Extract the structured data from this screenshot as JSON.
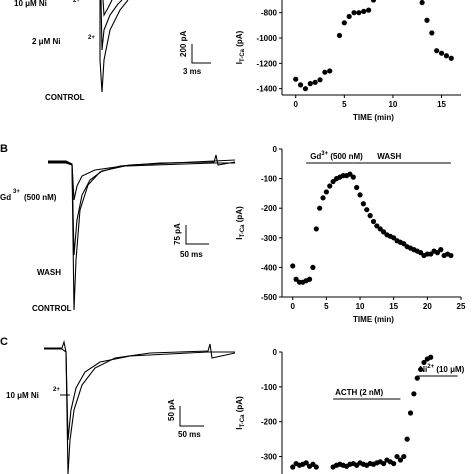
{
  "figure": {
    "panel_labels": [
      "B",
      "C"
    ],
    "traces": {
      "A": {
        "labels": [
          "10 μM  Ni",
          "2 μM  Ni",
          "CONTROL"
        ],
        "label_superscripts": [
          "2+",
          "2+"
        ],
        "scale_bar": {
          "vertical": "200 pA",
          "horizontal": "3 ms"
        }
      },
      "B": {
        "labels": [
          "Gd",
          " (500 nM)",
          "WASH",
          "CONTROL"
        ],
        "label_superscripts": [
          "3+"
        ],
        "scale_bar": {
          "vertical": "75 pA",
          "horizontal": "50 ms"
        }
      },
      "C": {
        "labels": [
          "10 μM  Ni"
        ],
        "label_superscripts": [
          "2+"
        ],
        "scale_bar": {
          "vertical": "50 pA",
          "horizontal": "50 ms"
        }
      }
    }
  },
  "chart_data": [
    {
      "type": "scatter",
      "panel": "A",
      "ylabel": "I",
      "ylabel_sub": "T-Ca",
      "ylabel_unit": " (pA)",
      "xlabel": "TIME (min)",
      "xlim": [
        -1,
        17
      ],
      "ylim": [
        -1450,
        -700
      ],
      "xticks": [
        0,
        5,
        10,
        15
      ],
      "yticks": [
        -800,
        -1000,
        -1200,
        -1400
      ],
      "x": [
        0,
        0.5,
        1,
        1.5,
        2,
        2.5,
        3,
        3.5,
        4.5,
        5,
        5.5,
        6,
        6.5,
        7,
        7.5,
        8,
        13,
        13.5,
        14,
        14.5,
        15,
        15.5,
        16
      ],
      "y": [
        -1325,
        -1370,
        -1400,
        -1360,
        -1350,
        -1330,
        -1270,
        -1260,
        -980,
        -880,
        -830,
        -800,
        -800,
        -790,
        -780,
        -700,
        -720,
        -860,
        -960,
        -1100,
        -1120,
        -1140,
        -1160
      ]
    },
    {
      "type": "scatter",
      "panel": "B",
      "ylabel": "I",
      "ylabel_sub": "T-Ca",
      "ylabel_unit": " (pA)",
      "xlabel": "TIME (min)",
      "xlim": [
        -1,
        25
      ],
      "ylim": [
        -500,
        0
      ],
      "xticks": [
        0,
        5,
        10,
        15,
        20,
        25
      ],
      "yticks": [
        0,
        -100,
        -200,
        -300,
        -400,
        -500
      ],
      "annotations": [
        {
          "text": "Gd",
          "sup": "3+",
          "rest": " (500 nM)",
          "bar_x": [
            2,
            9
          ]
        },
        {
          "text": "WASH",
          "bar_x": [
            9,
            23.5
          ]
        }
      ],
      "x": [
        0,
        0.5,
        1,
        1.5,
        2,
        2.5,
        3,
        3.5,
        4,
        4.5,
        5,
        5.5,
        6,
        6.5,
        7,
        7.5,
        8,
        8.5,
        9,
        9.5,
        10,
        10.5,
        11,
        11.5,
        12,
        12.5,
        13,
        13.5,
        14,
        14.5,
        15,
        15.5,
        16,
        16.5,
        17,
        17.5,
        18,
        18.5,
        19,
        19.5,
        20,
        20.5,
        21,
        21.5,
        22,
        22.5,
        23,
        23.5
      ],
      "y": [
        -395,
        -440,
        -450,
        -450,
        -445,
        -440,
        -400,
        -270,
        -200,
        -165,
        -145,
        -125,
        -110,
        -100,
        -95,
        -90,
        -90,
        -85,
        -95,
        -130,
        -155,
        -185,
        -205,
        -225,
        -245,
        -260,
        -270,
        -280,
        -290,
        -295,
        -300,
        -310,
        -315,
        -320,
        -330,
        -335,
        -340,
        -345,
        -350,
        -360,
        -355,
        -355,
        -345,
        -350,
        -340,
        -360,
        -355,
        -360
      ]
    },
    {
      "type": "scatter",
      "panel": "C",
      "ylabel": "I",
      "ylabel_sub": "T-Ca",
      "ylabel_unit": " (pA)",
      "xlim": [
        -1,
        25
      ],
      "ylim": [
        -350,
        0
      ],
      "yticks": [
        0,
        -100,
        -200,
        -300
      ],
      "annotations": [
        {
          "text": "ACTH (2 nM)",
          "bar_x": [
            6,
            16
          ]
        },
        {
          "text": "Ni",
          "sup": "2+",
          "rest": " (10 μM)",
          "bar_x": [
            18.5,
            24.5
          ]
        }
      ],
      "x": [
        0,
        0.5,
        1,
        1.5,
        2,
        2.5,
        3,
        3.5,
        6,
        6.5,
        7,
        7.5,
        8,
        8.5,
        9,
        9.5,
        10,
        10.5,
        11,
        11.5,
        12,
        12.5,
        13,
        13.5,
        14,
        14.5,
        15,
        15.5,
        16,
        16.5,
        17,
        17.5,
        18,
        18.5,
        19,
        19.5,
        20,
        20.5
      ],
      "y": [
        -330,
        -320,
        -325,
        -322,
        -318,
        -328,
        -322,
        -330,
        -330,
        -325,
        -322,
        -325,
        -328,
        -322,
        -320,
        -325,
        -318,
        -322,
        -325,
        -320,
        -322,
        -318,
        -315,
        -320,
        -310,
        -315,
        -320,
        -300,
        -310,
        -300,
        -250,
        -175,
        -120,
        -75,
        -50,
        -30,
        -20,
        -15
      ]
    }
  ]
}
